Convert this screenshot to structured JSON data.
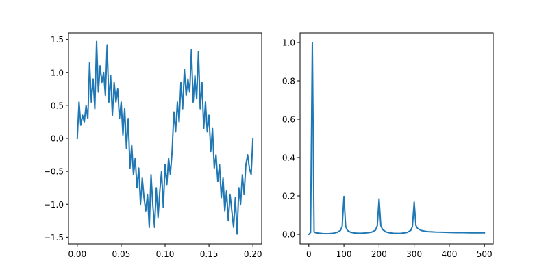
{
  "chart_data": [
    {
      "type": "line",
      "title": "",
      "xlabel": "",
      "ylabel": "",
      "xlim": [
        -0.01,
        0.21
      ],
      "ylim": [
        -1.6,
        1.6
      ],
      "xticks": [
        0.0,
        0.05,
        0.1,
        0.15,
        0.2
      ],
      "xtick_labels": [
        "0.00",
        "0.05",
        "0.10",
        "0.15",
        "0.20"
      ],
      "yticks": [
        -1.5,
        -1.0,
        -0.5,
        0.0,
        0.5,
        1.0,
        1.5
      ],
      "ytick_labels": [
        "−1.5",
        "−1.0",
        "−0.5",
        "0.0",
        "0.5",
        "1.0",
        "1.5"
      ],
      "grid": false,
      "series": [
        {
          "color": "#1f77b4",
          "x": [
            0.0,
            0.002,
            0.004,
            0.006,
            0.008,
            0.01,
            0.012,
            0.014,
            0.016,
            0.018,
            0.02,
            0.022,
            0.024,
            0.026,
            0.028,
            0.03,
            0.032,
            0.034,
            0.036,
            0.038,
            0.04,
            0.042,
            0.044,
            0.046,
            0.048,
            0.05,
            0.052,
            0.054,
            0.056,
            0.058,
            0.06,
            0.062,
            0.064,
            0.066,
            0.068,
            0.07,
            0.072,
            0.074,
            0.076,
            0.078,
            0.08,
            0.082,
            0.084,
            0.086,
            0.088,
            0.09,
            0.092,
            0.094,
            0.096,
            0.098,
            0.1,
            0.102,
            0.104,
            0.106,
            0.108,
            0.11,
            0.112,
            0.114,
            0.116,
            0.118,
            0.12,
            0.122,
            0.124,
            0.126,
            0.128,
            0.13,
            0.132,
            0.134,
            0.136,
            0.138,
            0.14,
            0.142,
            0.144,
            0.146,
            0.148,
            0.15,
            0.152,
            0.154,
            0.156,
            0.158,
            0.16,
            0.162,
            0.164,
            0.166,
            0.168,
            0.17,
            0.172,
            0.174,
            0.176,
            0.178,
            0.18,
            0.182,
            0.184,
            0.186,
            0.188,
            0.19,
            0.192,
            0.194,
            0.196,
            0.198,
            0.2
          ],
          "y": [
            0.0,
            0.55,
            0.2,
            0.35,
            0.25,
            0.5,
            0.3,
            1.15,
            0.55,
            0.9,
            0.45,
            1.47,
            0.7,
            1.1,
            0.85,
            1.0,
            0.65,
            1.42,
            0.55,
            0.95,
            0.35,
            0.85,
            0.55,
            0.75,
            0.3,
            0.55,
            0.05,
            0.45,
            -0.15,
            0.3,
            -0.45,
            -0.1,
            -0.55,
            -0.3,
            -0.75,
            -0.45,
            -1.0,
            -0.6,
            -0.9,
            -1.1,
            -0.85,
            -1.35,
            -0.55,
            -1.0,
            -1.35,
            -0.75,
            -1.2,
            -0.8,
            -0.5,
            -1.05,
            -0.4,
            -0.7,
            -0.3,
            -0.55,
            -0.2,
            0.4,
            0.1,
            0.55,
            0.25,
            0.85,
            0.45,
            1.05,
            0.65,
            0.9,
            0.7,
            1.35,
            0.55,
            0.95,
            0.6,
            1.32,
            0.45,
            0.85,
            0.15,
            0.55,
            0.1,
            0.35,
            -0.2,
            0.15,
            -0.45,
            -0.25,
            -0.65,
            -0.4,
            -0.9,
            -0.6,
            -1.1,
            -0.8,
            -1.25,
            -0.85,
            -1.1,
            -1.35,
            -0.9,
            -1.45,
            -0.75,
            -1.0,
            -0.55,
            -0.85,
            -0.4,
            -0.25,
            -0.45,
            -0.55,
            0.0
          ]
        }
      ]
    },
    {
      "type": "line",
      "title": "",
      "xlabel": "",
      "ylabel": "",
      "xlim": [
        -25,
        525
      ],
      "ylim": [
        -0.05,
        1.05
      ],
      "xticks": [
        0,
        100,
        200,
        300,
        400,
        500
      ],
      "xtick_labels": [
        "0",
        "100",
        "200",
        "300",
        "400",
        "500"
      ],
      "yticks": [
        0.0,
        0.2,
        0.4,
        0.6,
        0.8,
        1.0
      ],
      "ytick_labels": [
        "0.0",
        "0.2",
        "0.4",
        "0.6",
        "0.8",
        "1.0"
      ],
      "grid": false,
      "series": [
        {
          "color": "#1f77b4",
          "x": [
            0,
            5,
            10,
            15,
            20,
            30,
            40,
            50,
            60,
            70,
            80,
            90,
            95,
            100,
            105,
            110,
            120,
            130,
            140,
            150,
            160,
            170,
            180,
            190,
            195,
            200,
            205,
            210,
            220,
            230,
            240,
            250,
            260,
            270,
            280,
            290,
            295,
            300,
            305,
            310,
            320,
            330,
            340,
            350,
            360,
            380,
            400,
            420,
            440,
            460,
            480,
            500
          ],
          "y": [
            0.0,
            0.01,
            1.0,
            0.012,
            0.008,
            0.006,
            0.004,
            0.003,
            0.004,
            0.006,
            0.01,
            0.02,
            0.04,
            0.197,
            0.04,
            0.02,
            0.01,
            0.007,
            0.006,
            0.006,
            0.007,
            0.009,
            0.012,
            0.022,
            0.045,
            0.185,
            0.045,
            0.025,
            0.012,
            0.008,
            0.006,
            0.005,
            0.005,
            0.007,
            0.01,
            0.02,
            0.04,
            0.168,
            0.045,
            0.03,
            0.02,
            0.016,
            0.014,
            0.013,
            0.012,
            0.011,
            0.01,
            0.009,
            0.009,
            0.008,
            0.008,
            0.008
          ]
        }
      ]
    }
  ]
}
